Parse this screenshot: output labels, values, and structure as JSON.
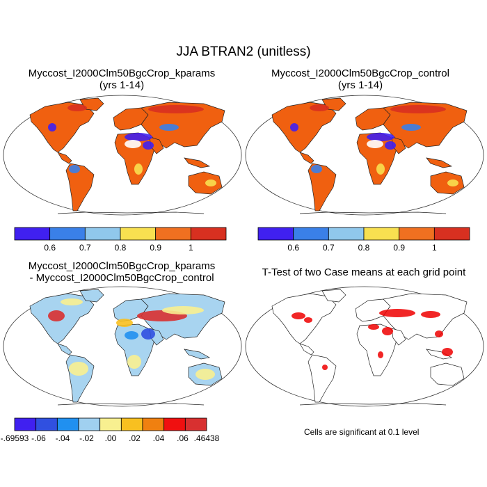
{
  "title": "JJA BTRAN2 (unitless)",
  "panels": [
    {
      "title_line1": "Myccost_I2000Clm50BgcCrop_kparams",
      "title_line2": "(yrs 1-14)"
    },
    {
      "title_line1": "Myccost_I2000Clm50BgcCrop_control",
      "title_line2": "(yrs 1-14)"
    },
    {
      "title_line1": "Myccost_I2000Clm50BgcCrop_kparams",
      "title_line2": "- Myccost_I2000Clm50BgcCrop_control"
    },
    {
      "title_line1": "T-Test of two Case means at each grid point",
      "title_line2": ""
    }
  ],
  "colorbar_top": {
    "colors": [
      "#4020f0",
      "#3a80e8",
      "#90c8ec",
      "#f8e050",
      "#f07020",
      "#d83020"
    ],
    "labels": [
      "0.6",
      "0.7",
      "0.8",
      "0.9",
      "1"
    ]
  },
  "colorbar_diff": {
    "colors": [
      "#4020f0",
      "#3050e0",
      "#2090f0",
      "#a0d0f0",
      "#f8f090",
      "#f8c020",
      "#f08010",
      "#f01010",
      "#d83030"
    ],
    "labels": [
      "-.69593",
      "-.06",
      "-.04",
      "-.02",
      ".00",
      ".02",
      ".04",
      ".06",
      ".46438"
    ]
  },
  "significance_note": "Cells are significant at 0.1 level",
  "colors": {
    "land_main": "#f06010",
    "ocean": "#ffffff",
    "diff_land": "#a8d4f0",
    "significant": "#ee0000"
  }
}
